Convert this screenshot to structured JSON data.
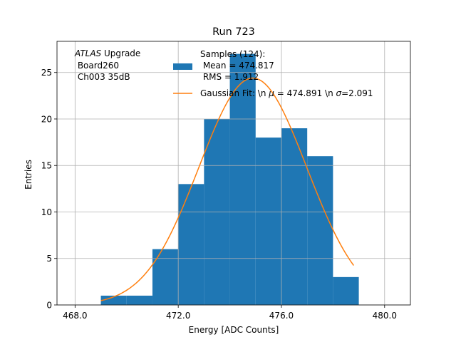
{
  "chart_data": {
    "type": "bar",
    "title": "Run 723",
    "xlabel": "Energy [ADC Counts]",
    "ylabel": "Entries",
    "xlim": [
      467.3,
      481.0
    ],
    "ylim": [
      0,
      28.35
    ],
    "xticks": [
      468,
      472,
      476,
      480
    ],
    "xtick_labels": [
      "468.0",
      "472.0",
      "476.0",
      "480.0"
    ],
    "yticks": [
      0,
      5,
      10,
      15,
      20,
      25
    ],
    "ytick_labels": [
      "0",
      "5",
      "10",
      "15",
      "20",
      "25"
    ],
    "grid": true,
    "histogram": {
      "name": "Samples (124)",
      "color": "#1f77b4",
      "bin_edges": [
        469,
        470,
        471,
        472,
        473,
        474,
        475,
        476,
        477,
        478,
        479
      ],
      "counts": [
        1,
        1,
        6,
        13,
        20,
        27,
        18,
        19,
        16,
        3
      ]
    },
    "fit": {
      "name": "Gaussian Fit",
      "color": "#ff7f0e",
      "mu": 474.891,
      "sigma": 2.091,
      "amplitude": 24.4,
      "x_range": [
        469.0,
        478.8
      ]
    },
    "annotation": {
      "italic": "ATLAS",
      "rest": " Upgrade",
      "lines": [
        " Board260",
        " Ch003 35dB"
      ]
    },
    "legend": {
      "position": "top-right",
      "entries": [
        {
          "lines": [
            "Samples (124):",
            " Mean = 474.817",
            " RMS = 1.912"
          ],
          "marker": "patch"
        },
        {
          "prefix": "Gaussian Fit: \\n ",
          "mu_symbol": "μ",
          "mu_text": " = 474.891 \\n ",
          "sigma_symbol": "σ",
          "sigma_text": "=2.091",
          "marker": "line"
        }
      ]
    },
    "colors": {
      "grid": "#b0b0b0",
      "axes": "#000000",
      "background": "#ffffff"
    }
  }
}
